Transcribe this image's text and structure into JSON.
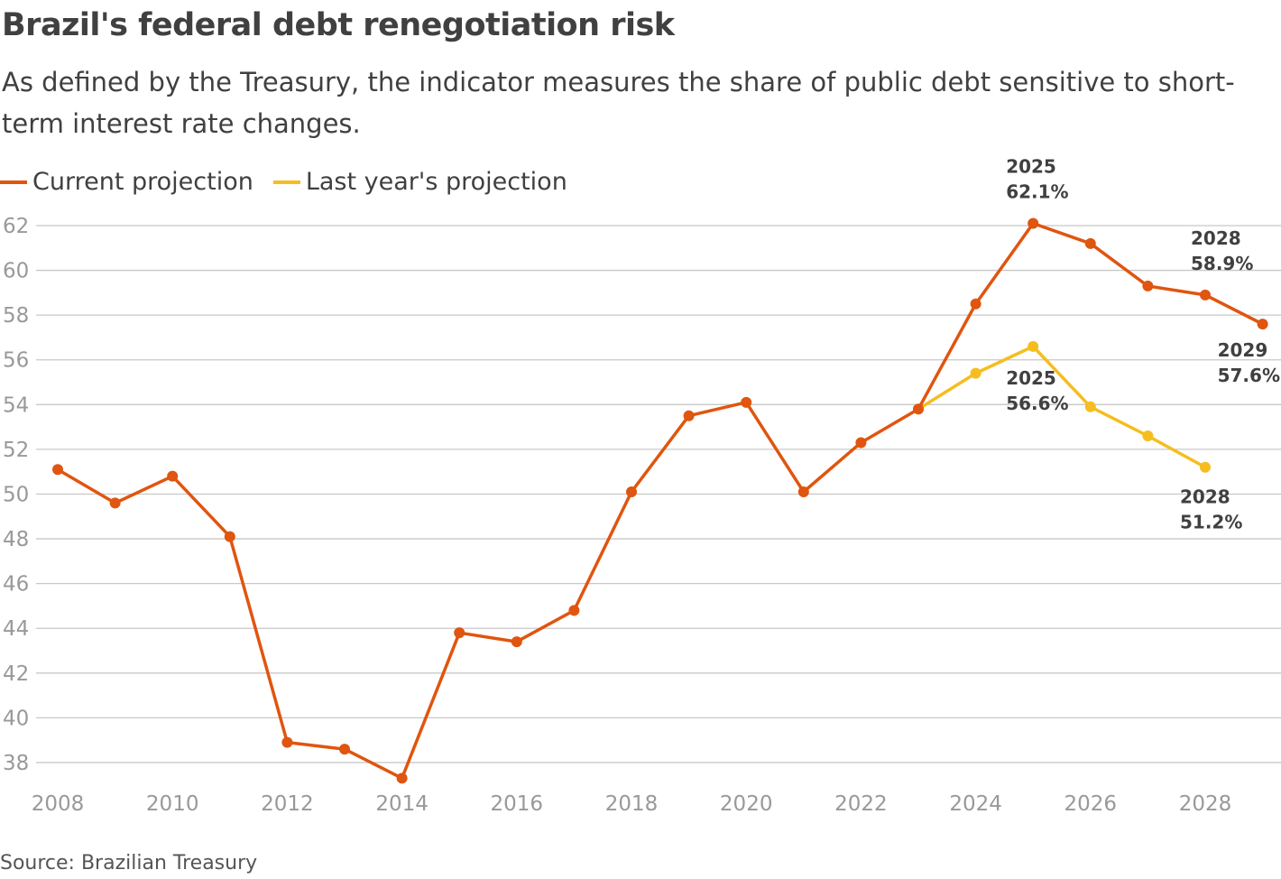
{
  "title": "Brazil's federal debt renegotiation risk",
  "subtitle": "As defined by the Treasury, the indicator measures the share of public debt sensitive to short-term interest rate changes.",
  "source": "Source: Brazilian Treasury",
  "chart_data": {
    "type": "line",
    "title": "Brazil's federal debt renegotiation risk",
    "xlabel": "",
    "ylabel": "",
    "xlim": [
      2008,
      2029
    ],
    "ylim": [
      37,
      62.5
    ],
    "x_ticks": [
      2008,
      2010,
      2012,
      2014,
      2016,
      2018,
      2020,
      2022,
      2024,
      2026,
      2028
    ],
    "y_ticks": [
      38,
      40,
      42,
      44,
      46,
      48,
      50,
      52,
      54,
      56,
      58,
      60,
      62
    ],
    "grid": "horizontal",
    "legend_position": "top-left",
    "series": [
      {
        "name": "Current projection",
        "color": "#e0550f",
        "x": [
          2008,
          2009,
          2010,
          2011,
          2012,
          2013,
          2014,
          2015,
          2016,
          2017,
          2018,
          2019,
          2020,
          2021,
          2022,
          2023,
          2024,
          2025,
          2026,
          2027,
          2028,
          2029
        ],
        "values": [
          51.1,
          49.6,
          50.8,
          48.1,
          38.9,
          38.6,
          37.3,
          43.8,
          43.4,
          44.8,
          50.1,
          53.5,
          54.1,
          50.1,
          52.3,
          53.8,
          58.5,
          62.1,
          61.2,
          59.3,
          58.9,
          57.6
        ]
      },
      {
        "name": "Last year's projection",
        "color": "#f5bd1f",
        "x": [
          2023,
          2024,
          2025,
          2026,
          2027,
          2028
        ],
        "values": [
          53.8,
          55.4,
          56.6,
          53.9,
          52.6,
          51.2
        ]
      }
    ],
    "annotations": [
      {
        "series": 0,
        "x": 2025,
        "year": "2025",
        "value": "62.1%"
      },
      {
        "series": 0,
        "x": 2028,
        "year": "2028",
        "value": "58.9%"
      },
      {
        "series": 0,
        "x": 2029,
        "year": "2029",
        "value": "57.6%"
      },
      {
        "series": 1,
        "x": 2025,
        "year": "2025",
        "value": "56.6%"
      },
      {
        "series": 1,
        "x": 2028,
        "year": "2028",
        "value": "51.2%"
      }
    ]
  }
}
